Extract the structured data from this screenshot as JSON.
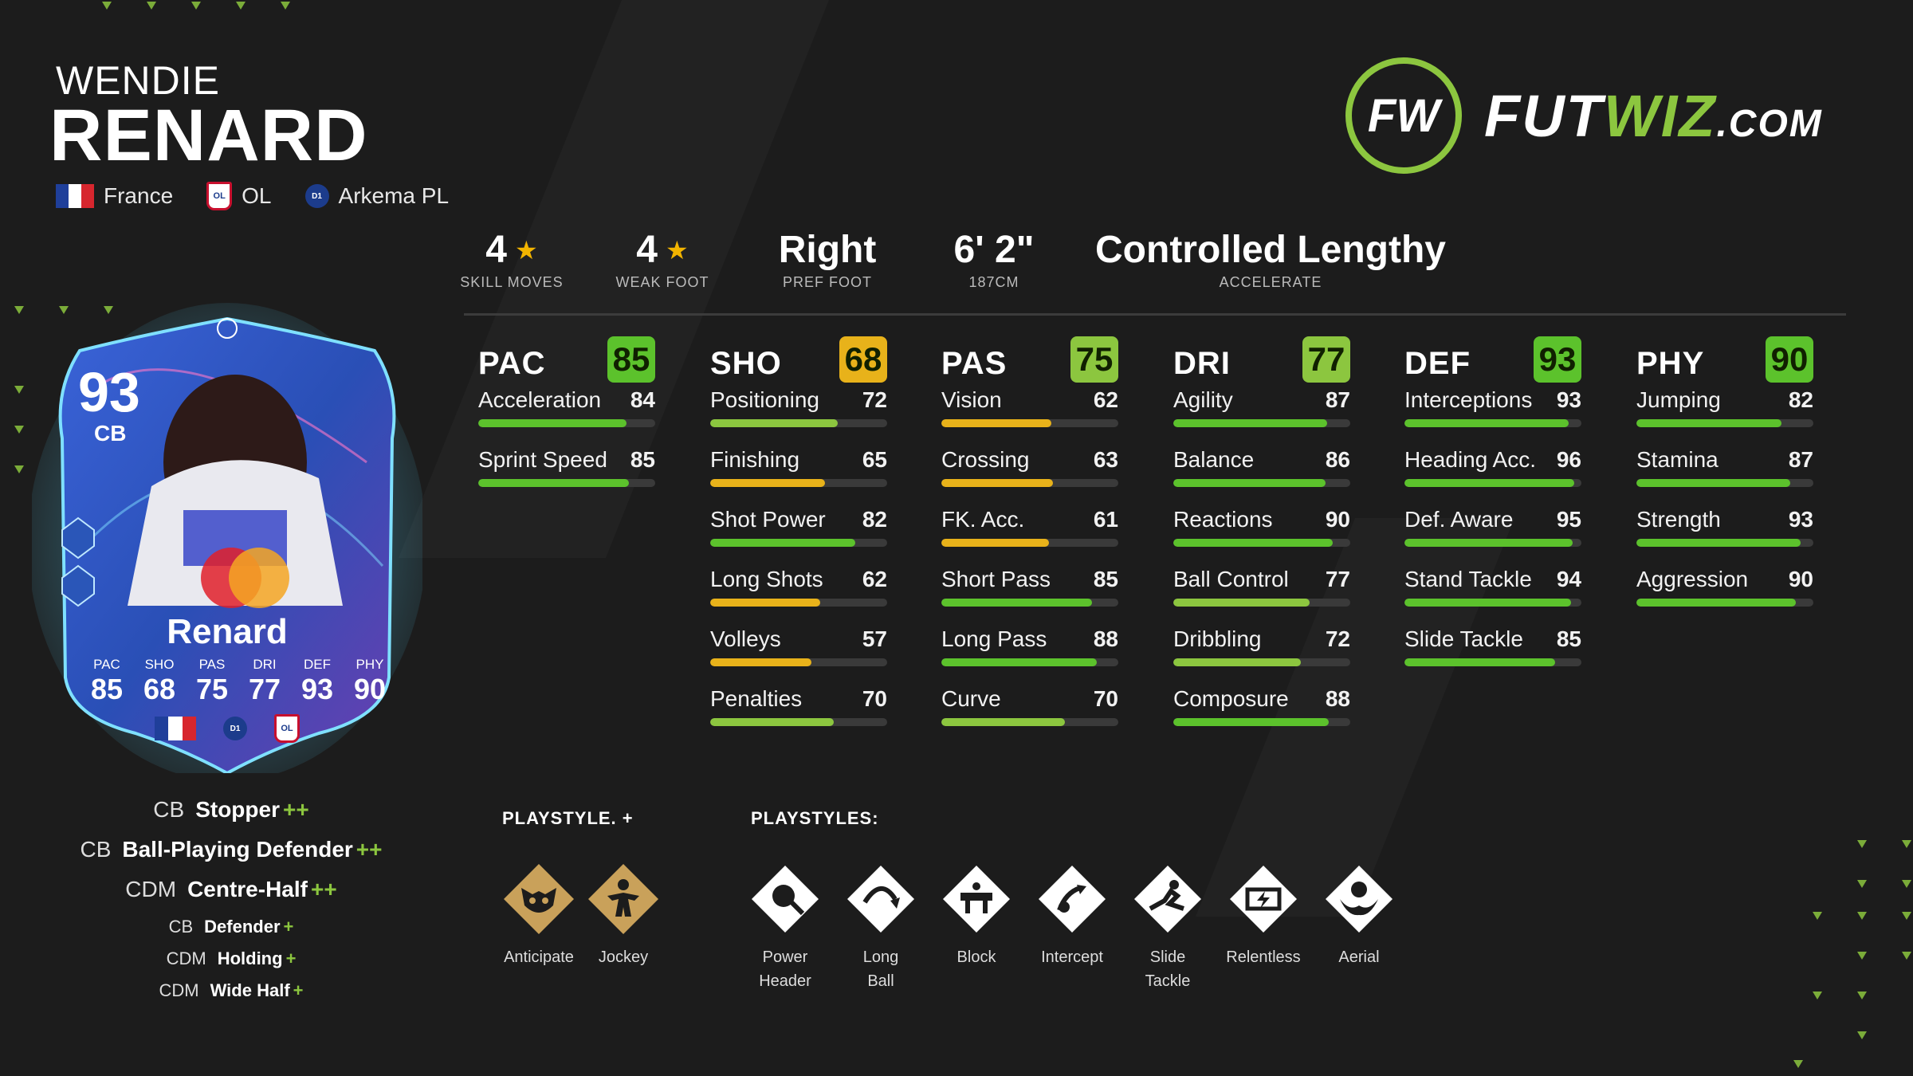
{
  "player": {
    "first_name": "WENDIE",
    "last_name": "RENARD",
    "nation": "France",
    "club": "OL",
    "league": "Arkema PL",
    "club_crest_text": "OL",
    "league_crest_text": "D1"
  },
  "logo": {
    "mark": "FW",
    "text_white": "FUT",
    "text_green": "WIZ",
    "text_suffix": ".COM"
  },
  "info": {
    "skill_moves": {
      "value": "4",
      "label": "SKILL MOVES",
      "stars": 1
    },
    "weak_foot": {
      "value": "4",
      "label": "WEAK FOOT",
      "stars": 1
    },
    "pref_foot": {
      "value": "Right",
      "label": "PREF FOOT"
    },
    "height": {
      "value": "6' 2\"",
      "label": "187CM"
    },
    "accelerate": {
      "value": "Controlled Lengthy",
      "label": "ACCELERATE"
    }
  },
  "colors": {
    "green_high": "#5cc22c",
    "green_mid": "#8cc63f",
    "yellow": "#e8b21a",
    "accent": "#8cc63f"
  },
  "stats": [
    {
      "key": "pac",
      "title": "PAC",
      "value": 85,
      "badge_color": "#5cc22c",
      "items": [
        {
          "name": "Acceleration",
          "value": 84
        },
        {
          "name": "Sprint Speed",
          "value": 85
        }
      ]
    },
    {
      "key": "sho",
      "title": "SHO",
      "value": 68,
      "badge_color": "#e8b21a",
      "items": [
        {
          "name": "Positioning",
          "value": 72
        },
        {
          "name": "Finishing",
          "value": 65
        },
        {
          "name": "Shot Power",
          "value": 82
        },
        {
          "name": "Long Shots",
          "value": 62
        },
        {
          "name": "Volleys",
          "value": 57
        },
        {
          "name": "Penalties",
          "value": 70
        }
      ]
    },
    {
      "key": "pas",
      "title": "PAS",
      "value": 75,
      "badge_color": "#8cc63f",
      "items": [
        {
          "name": "Vision",
          "value": 62
        },
        {
          "name": "Crossing",
          "value": 63
        },
        {
          "name": "FK. Acc.",
          "value": 61
        },
        {
          "name": "Short Pass",
          "value": 85
        },
        {
          "name": "Long Pass",
          "value": 88
        },
        {
          "name": "Curve",
          "value": 70
        }
      ]
    },
    {
      "key": "dri",
      "title": "DRI",
      "value": 77,
      "badge_color": "#8cc63f",
      "items": [
        {
          "name": "Agility",
          "value": 87
        },
        {
          "name": "Balance",
          "value": 86
        },
        {
          "name": "Reactions",
          "value": 90
        },
        {
          "name": "Ball Control",
          "value": 77
        },
        {
          "name": "Dribbling",
          "value": 72
        },
        {
          "name": "Composure",
          "value": 88
        }
      ]
    },
    {
      "key": "def",
      "title": "DEF",
      "value": 93,
      "badge_color": "#5cc22c",
      "items": [
        {
          "name": "Interceptions",
          "value": 93
        },
        {
          "name": "Heading Acc.",
          "value": 96
        },
        {
          "name": "Def. Aware",
          "value": 95
        },
        {
          "name": "Stand Tackle",
          "value": 94
        },
        {
          "name": "Slide Tackle",
          "value": 85
        }
      ]
    },
    {
      "key": "phy",
      "title": "PHY",
      "value": 90,
      "badge_color": "#5cc22c",
      "items": [
        {
          "name": "Jumping",
          "value": 82
        },
        {
          "name": "Stamina",
          "value": 87
        },
        {
          "name": "Strength",
          "value": 93
        },
        {
          "name": "Aggression",
          "value": 90
        }
      ]
    }
  ],
  "card": {
    "rating": "93",
    "position": "CB",
    "name": "Renard",
    "stats": [
      {
        "label": "PAC",
        "value": "85"
      },
      {
        "label": "SHO",
        "value": "68"
      },
      {
        "label": "PAS",
        "value": "75"
      },
      {
        "label": "DRI",
        "value": "77"
      },
      {
        "label": "DEF",
        "value": "93"
      },
      {
        "label": "PHY",
        "value": "90"
      }
    ],
    "league_badge": "D1",
    "club_badge": "OL"
  },
  "roles": [
    {
      "pos": "CB",
      "name": "Stopper",
      "plus": "++",
      "size": "big"
    },
    {
      "pos": "CB",
      "name": "Ball-Playing Defender",
      "plus": "++",
      "size": "big"
    },
    {
      "pos": "CDM",
      "name": "Centre-Half",
      "plus": "++",
      "size": "big"
    },
    {
      "pos": "CB",
      "name": "Defender",
      "plus": "+",
      "size": "small"
    },
    {
      "pos": "CDM",
      "name": "Holding",
      "plus": "+",
      "size": "small"
    },
    {
      "pos": "CDM",
      "name": "Wide Half",
      "plus": "+",
      "size": "small"
    }
  ],
  "playstyle_plus": {
    "title": "PLAYSTYLE. +",
    "items": [
      {
        "name": "Anticipate",
        "icon": "raccoon-icon"
      },
      {
        "name": "Jockey",
        "icon": "jockey-icon"
      }
    ]
  },
  "playstyles": {
    "title": "PLAYSTYLES:",
    "items": [
      {
        "name": "Power Header",
        "line1": "Power",
        "line2": "Header",
        "icon": "power-header-icon"
      },
      {
        "name": "Long Ball",
        "line1": "Long",
        "line2": "Ball",
        "icon": "long-ball-icon"
      },
      {
        "name": "Block",
        "line1": "Block",
        "line2": "",
        "icon": "block-icon"
      },
      {
        "name": "Intercept",
        "line1": "Intercept",
        "line2": "",
        "icon": "intercept-icon"
      },
      {
        "name": "Slide Tackle",
        "line1": "Slide",
        "line2": "Tackle",
        "icon": "slide-tackle-icon"
      },
      {
        "name": "Relentless",
        "line1": "Relentless",
        "line2": "",
        "icon": "relentless-icon"
      },
      {
        "name": "Aerial",
        "line1": "Aerial",
        "line2": "",
        "icon": "aerial-icon"
      }
    ]
  }
}
